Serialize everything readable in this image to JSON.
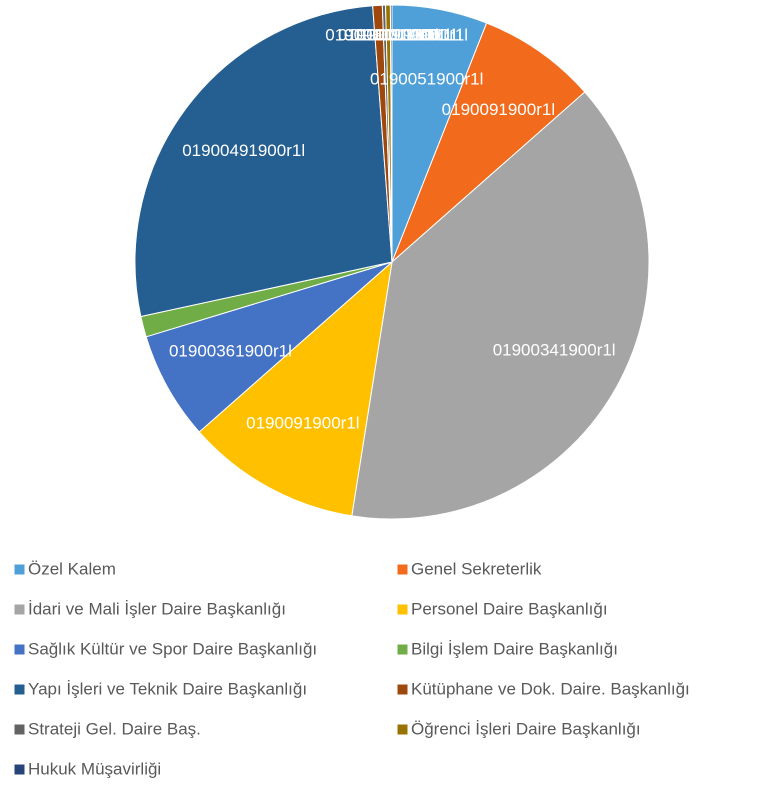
{
  "chart_data": {
    "type": "pie",
    "categories": [
      "Özel Kalem",
      "Genel Sekreterlik",
      "İdari ve Mali İşler Daire Başkanlığı",
      "Personel Daire Başkanlığı",
      "Sağlık Kültür ve Spor Daire Başkanlığı",
      "Bilgi İşlem Daire Başkanlığı",
      "Yapı İşleri ve Teknik Daire Başkanlığı",
      "Kütüphane ve Dok. Daire. Başkanlığı",
      "Strateji Gel. Daire Baş.",
      "Öğrenci İşleri Daire Başkanlığı",
      "Hukuk Müşavirliği"
    ],
    "values": [
      6,
      7.5,
      39,
      11,
      6.8,
      1.3,
      27.2,
      0.6,
      0.2,
      0.3,
      0.1
    ],
    "value_labels": [
      "0190051900r1l",
      "0190091900r1l",
      "01900341900r1l",
      "0190091900r1l",
      "01900361900r1l",
      "0190061900r1l",
      "01900491900r1l",
      "0190011900r1l",
      "0190011900r1l",
      "0190011900r1l",
      "0190011900r1l"
    ],
    "colors": [
      "#4f9fd9",
      "#f26b1d",
      "#a5a5a5",
      "#ffc000",
      "#4472c4",
      "#70ad47",
      "#255e91",
      "#9e480e",
      "#636363",
      "#997300",
      "#264478"
    ],
    "legend": "bottom"
  }
}
